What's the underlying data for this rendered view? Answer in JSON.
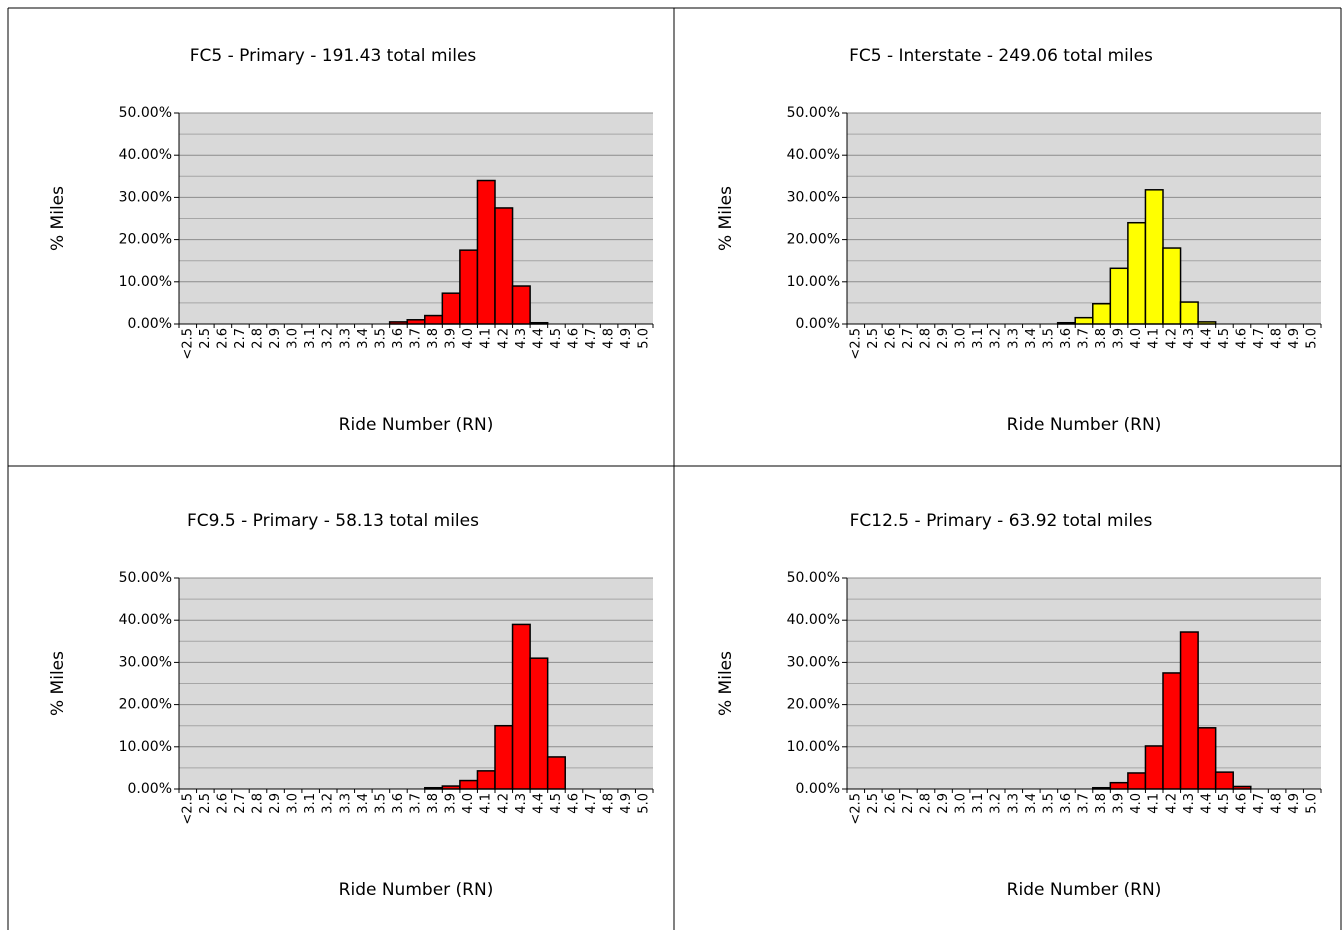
{
  "chart_data": [
    {
      "type": "bar",
      "title": "FC5 - Primary - 191.43 total miles",
      "x_label": "Ride Number (RN)",
      "y_label": "% Miles",
      "categories": [
        "<2.5",
        "2.5",
        "2.6",
        "2.7",
        "2.8",
        "2.9",
        "3.0",
        "3.1",
        "3.2",
        "3.3",
        "3.4",
        "3.5",
        "3.6",
        "3.7",
        "3.8",
        "3.9",
        "4.0",
        "4.1",
        "4.2",
        "4.3",
        "4.4",
        "4.5",
        "4.6",
        "4.7",
        "4.8",
        "4.9",
        "5.0"
      ],
      "values": [
        0,
        0,
        0,
        0,
        0,
        0,
        0,
        0,
        0,
        0,
        0,
        0,
        0.5,
        1,
        2,
        7.3,
        17.5,
        34,
        27.5,
        9,
        0.3,
        0,
        0,
        0,
        0,
        0,
        0
      ],
      "color": "#ff0000",
      "ylim": [
        0,
        50
      ],
      "yticks": [
        {
          "value": 0,
          "label": "0.00%"
        },
        {
          "value": 10,
          "label": "10.00%"
        },
        {
          "value": 20,
          "label": "20.00%"
        },
        {
          "value": 30,
          "label": "30.00%"
        },
        {
          "value": 40,
          "label": "40.00%"
        },
        {
          "value": 50,
          "label": "50.00%"
        }
      ],
      "minor_yticks": [
        5,
        15,
        25,
        35,
        45
      ],
      "grid": true
    },
    {
      "type": "bar",
      "title": "FC5 - Interstate - 249.06 total miles",
      "x_label": "Ride Number (RN)",
      "y_label": "% Miles",
      "categories": [
        "<2.5",
        "2.5",
        "2.6",
        "2.7",
        "2.8",
        "2.9",
        "3.0",
        "3.1",
        "3.2",
        "3.3",
        "3.4",
        "3.5",
        "3.6",
        "3.7",
        "3.8",
        "3.9",
        "4.0",
        "4.1",
        "4.2",
        "4.3",
        "4.4",
        "4.5",
        "4.6",
        "4.7",
        "4.8",
        "4.9",
        "5.0"
      ],
      "values": [
        0,
        0,
        0,
        0,
        0,
        0,
        0,
        0,
        0,
        0,
        0,
        0,
        0.3,
        1.5,
        4.8,
        13.2,
        24,
        31.8,
        18,
        5.2,
        0.5,
        0,
        0,
        0,
        0,
        0,
        0
      ],
      "color": "#ffff00",
      "ylim": [
        0,
        50
      ],
      "yticks": [
        {
          "value": 0,
          "label": "0.00%"
        },
        {
          "value": 10,
          "label": "10.00%"
        },
        {
          "value": 20,
          "label": "20.00%"
        },
        {
          "value": 30,
          "label": "30.00%"
        },
        {
          "value": 40,
          "label": "40.00%"
        },
        {
          "value": 50,
          "label": "50.00%"
        }
      ],
      "minor_yticks": [
        5,
        15,
        25,
        35,
        45
      ],
      "grid": true
    },
    {
      "type": "bar",
      "title": "FC9.5 - Primary - 58.13 total miles",
      "x_label": "Ride Number (RN)",
      "y_label": "% Miles",
      "categories": [
        "<2.5",
        "2.5",
        "2.6",
        "2.7",
        "2.8",
        "2.9",
        "3.0",
        "3.1",
        "3.2",
        "3.3",
        "3.4",
        "3.5",
        "3.6",
        "3.7",
        "3.8",
        "3.9",
        "4.0",
        "4.1",
        "4.2",
        "4.3",
        "4.4",
        "4.5",
        "4.6",
        "4.7",
        "4.8",
        "4.9",
        "5.0"
      ],
      "values": [
        0,
        0,
        0,
        0,
        0,
        0,
        0,
        0,
        0,
        0,
        0,
        0,
        0,
        0,
        0.3,
        0.7,
        2,
        4.3,
        15,
        39,
        31,
        7.6,
        0,
        0,
        0,
        0,
        0
      ],
      "color": "#ff0000",
      "ylim": [
        0,
        50
      ],
      "yticks": [
        {
          "value": 0,
          "label": "0.00%"
        },
        {
          "value": 10,
          "label": "10.00%"
        },
        {
          "value": 20,
          "label": "20.00%"
        },
        {
          "value": 30,
          "label": "30.00%"
        },
        {
          "value": 40,
          "label": "40.00%"
        },
        {
          "value": 50,
          "label": "50.00%"
        }
      ],
      "minor_yticks": [
        5,
        15,
        25,
        35,
        45
      ],
      "grid": true
    },
    {
      "type": "bar",
      "title": "FC12.5 - Primary - 63.92 total miles",
      "x_label": "Ride Number (RN)",
      "y_label": "% Miles",
      "categories": [
        "<2.5",
        "2.5",
        "2.6",
        "2.7",
        "2.8",
        "2.9",
        "3.0",
        "3.1",
        "3.2",
        "3.3",
        "3.4",
        "3.5",
        "3.6",
        "3.7",
        "3.8",
        "3.9",
        "4.0",
        "4.1",
        "4.2",
        "4.3",
        "4.4",
        "4.5",
        "4.6",
        "4.7",
        "4.8",
        "4.9",
        "5.0"
      ],
      "values": [
        0,
        0,
        0,
        0,
        0,
        0,
        0,
        0,
        0,
        0,
        0,
        0,
        0,
        0,
        0.3,
        1.5,
        3.8,
        10.2,
        27.5,
        37.2,
        14.5,
        4,
        0.6,
        0,
        0,
        0,
        0
      ],
      "color": "#ff0000",
      "ylim": [
        0,
        50
      ],
      "yticks": [
        {
          "value": 0,
          "label": "0.00%"
        },
        {
          "value": 10,
          "label": "10.00%"
        },
        {
          "value": 20,
          "label": "20.00%"
        },
        {
          "value": 30,
          "label": "30.00%"
        },
        {
          "value": 40,
          "label": "40.00%"
        },
        {
          "value": 50,
          "label": "50.00%"
        }
      ],
      "minor_yticks": [
        5,
        15,
        25,
        35,
        45
      ],
      "grid": true
    }
  ]
}
